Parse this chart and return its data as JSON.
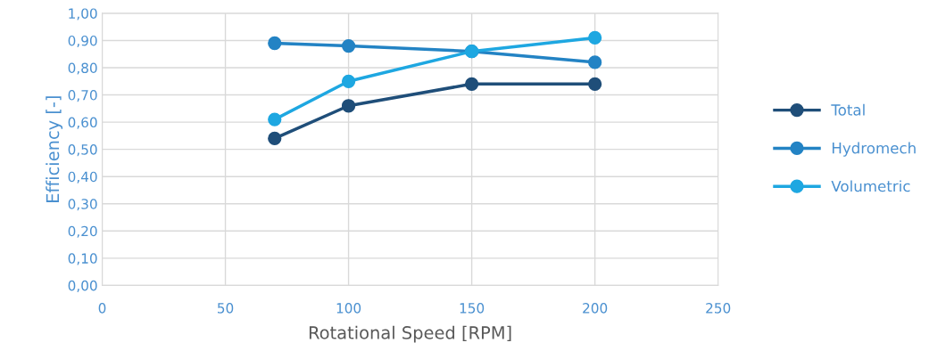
{
  "chart_data": {
    "type": "line",
    "xlabel": "Rotational Speed [RPM]",
    "ylabel": "Efficiency [-]",
    "x": [
      70,
      100,
      150,
      200
    ],
    "series": [
      {
        "name": "Total",
        "color": "#1f4e79",
        "values": [
          0.54,
          0.66,
          0.74,
          0.74
        ]
      },
      {
        "name": "Hydromech",
        "color": "#2383c4",
        "values": [
          0.89,
          0.88,
          0.86,
          0.82
        ]
      },
      {
        "name": "Volumetric",
        "color": "#1ea7e1",
        "values": [
          0.61,
          0.75,
          0.86,
          0.91
        ]
      }
    ],
    "xlim": [
      0,
      250
    ],
    "xticks": [
      0,
      50,
      100,
      150,
      200,
      250
    ],
    "ylim": [
      0,
      1
    ],
    "yticks": [
      {
        "value": 0,
        "label": "0,00"
      },
      {
        "value": 0.1,
        "label": "0,10"
      },
      {
        "value": 0.2,
        "label": "0,20"
      },
      {
        "value": 0.3,
        "label": "0,30"
      },
      {
        "value": 0.4,
        "label": "0,40"
      },
      {
        "value": 0.5,
        "label": "0,50"
      },
      {
        "value": 0.6,
        "label": "0,60"
      },
      {
        "value": 0.7,
        "label": "0,70"
      },
      {
        "value": 0.8,
        "label": "0,80"
      },
      {
        "value": 0.9,
        "label": "0,90"
      },
      {
        "value": 1,
        "label": "1,00"
      }
    ],
    "grid": true,
    "legend": "right",
    "marker": "circle",
    "line_style": "solid"
  }
}
